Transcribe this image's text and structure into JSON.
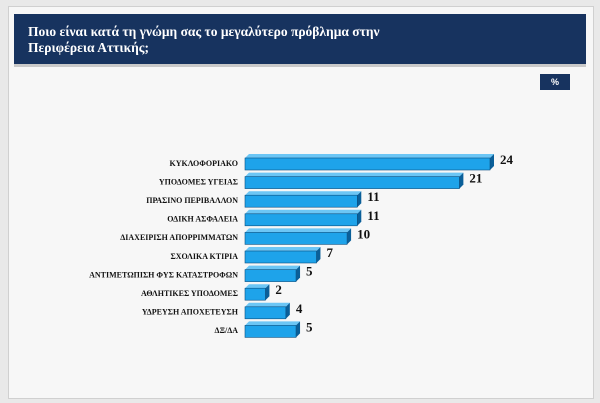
{
  "chart_data": {
    "type": "bar",
    "orientation": "horizontal",
    "title": "Ποιο είναι κατά τη γνώμη σας το μεγαλύτερο πρόβλημα στην Περιφέρεια Αττικής;",
    "unit_badge": "%",
    "categories": [
      "ΚΥΚΛΟΦΟΡΙΑΚΟ",
      "ΥΠΟΔΟΜΕΣ ΥΓΕΙΑΣ",
      "ΠΡΑΣΙΝΟ ΠΕΡΙΒΑΛΛΟΝ",
      "ΟΔΙΚΗ ΑΣΦΑΛΕΙΑ",
      "ΔΙΑΧΕΙΡΙΣΗ ΑΠΟΡΡΙΜΜΑΤΩΝ",
      "ΣΧΟΛΙΚΑ ΚΤΙΡΙΑ",
      "ΑΝΤΙΜΕΤΩΠΙΣΗ ΦΥΣ ΚΑΤΑΣΤΡΟΦΩΝ",
      "ΑΘΛΗΤΙΚΕΣ ΥΠΟΔΟΜΕΣ",
      "ΥΔΡΕΥΣΗ ΑΠΟΧΕΤΕΥΣΗ",
      "ΔΞ/ΔΑ"
    ],
    "values": [
      24,
      21,
      11,
      11,
      10,
      7,
      5,
      2,
      4,
      5
    ],
    "color": "#1ea3ea"
  }
}
